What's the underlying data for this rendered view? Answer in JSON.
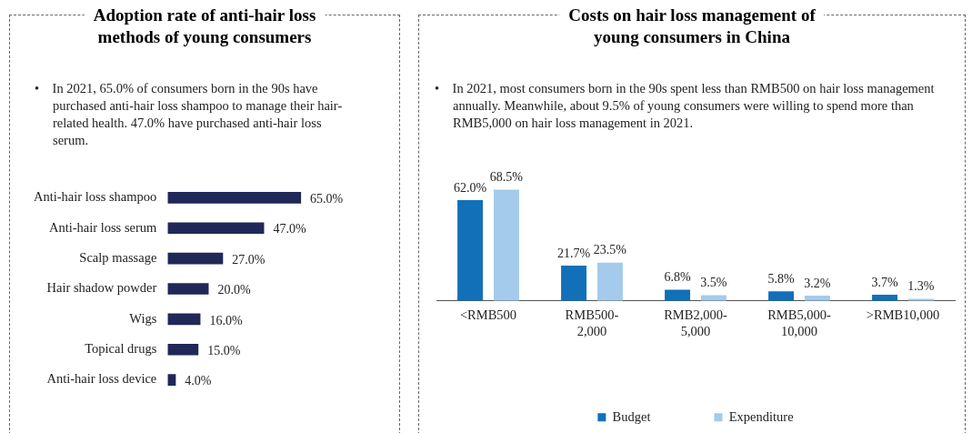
{
  "chart_data": [
    {
      "type": "bar",
      "title": "Adoption rate of anti-hair loss methods of young consumers",
      "orientation": "horizontal",
      "annotations": [
        "• In 2021, 65.0% of consumers born in the 90s have purchased anti-hair loss shampoo to manage their hair-related health. 47.0% have purchased anti-hair loss serum."
      ],
      "categories": [
        "Anti-hair loss shampoo",
        "Anti-hair loss serum",
        "Scalp massage",
        "Hair shadow powder",
        "Wigs",
        "Topical drugs",
        "Anti-hair loss device"
      ],
      "values": [
        65.0,
        47.0,
        27.0,
        20.0,
        16.0,
        15.0,
        4.0
      ],
      "color": "#1f2857",
      "value_labels": [
        "65.0%",
        "47.0%",
        "27.0%",
        "20.0%",
        "16.0%",
        "15.0%",
        "4.0%"
      ],
      "tick_labels": "y",
      "legend": false
    },
    {
      "type": "bar",
      "title": "Costs on hair loss management of young consumers in China",
      "annotations": [
        "• In 2021, most consumers born in the 90s spent less than RMB500 on hair loss management annually. Meanwhile, about 9.5% of young consumers were willing to spend more than RMB5,000 on hair loss management in 2021."
      ],
      "categories": [
        "<RMB500",
        "RMB500-2,000",
        "RMB2,000-5,000",
        "RMB5,000-10,000",
        ">RMB10,000"
      ],
      "series": [
        {
          "name": "Budget",
          "color": "#1170b8",
          "values": [
            62.0,
            21.7,
            6.8,
            5.8,
            3.7
          ],
          "value_labels": [
            "62.0%",
            "21.7%",
            "6.8%",
            "5.8%",
            "3.7%"
          ]
        },
        {
          "name": "Expenditure",
          "color": "#a4cbeb",
          "values": [
            68.5,
            23.5,
            3.5,
            3.2,
            1.3
          ],
          "value_labels": [
            "68.5%",
            "23.5%",
            "3.5%",
            "3.2%",
            "1.3%"
          ]
        }
      ],
      "tick_labels": "x",
      "legend": "bottom"
    }
  ]
}
